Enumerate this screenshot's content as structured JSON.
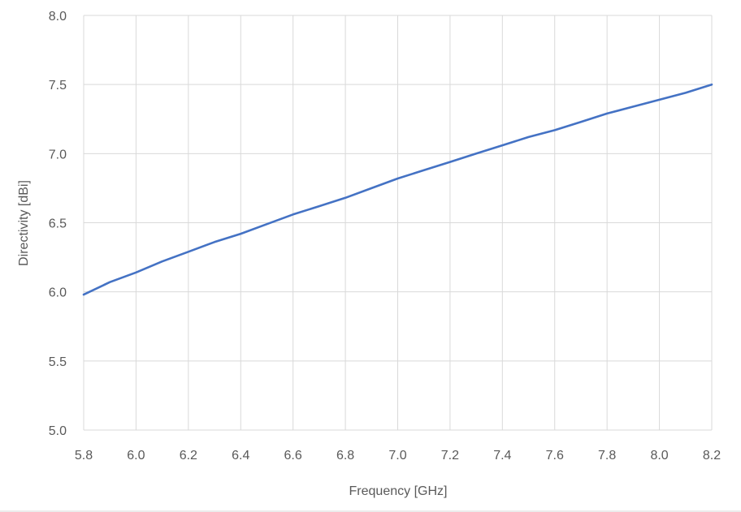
{
  "chart_data": {
    "type": "line",
    "title": "",
    "xlabel": "Frequency [GHz]",
    "ylabel": "Directivity [dBi]",
    "xlim": [
      5.8,
      8.2
    ],
    "ylim": [
      5.0,
      8.0
    ],
    "x_ticks": [
      "5.8",
      "6.0",
      "6.2",
      "6.4",
      "6.6",
      "6.8",
      "7.0",
      "7.2",
      "7.4",
      "7.6",
      "7.8",
      "8.0",
      "8.2"
    ],
    "y_ticks": [
      "5.0",
      "5.5",
      "6.0",
      "6.5",
      "7.0",
      "7.5",
      "8.0"
    ],
    "grid": true,
    "legend": "none",
    "series": [
      {
        "color": "#4472c4",
        "x": [
          5.8,
          5.9,
          6.0,
          6.1,
          6.2,
          6.3,
          6.4,
          6.5,
          6.6,
          6.7,
          6.8,
          6.9,
          7.0,
          7.1,
          7.2,
          7.3,
          7.4,
          7.5,
          7.6,
          7.7,
          7.8,
          7.9,
          8.0,
          8.1,
          8.2
        ],
        "values": [
          5.98,
          6.07,
          6.14,
          6.22,
          6.29,
          6.36,
          6.42,
          6.49,
          6.56,
          6.62,
          6.68,
          6.75,
          6.82,
          6.88,
          6.94,
          7.0,
          7.06,
          7.12,
          7.17,
          7.23,
          7.29,
          7.34,
          7.39,
          7.44,
          7.5
        ]
      }
    ]
  }
}
